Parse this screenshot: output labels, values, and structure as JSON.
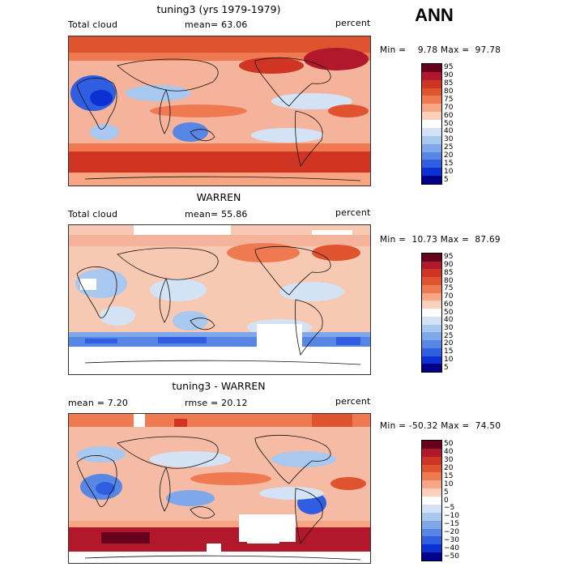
{
  "season": "ANN",
  "panels": [
    {
      "title": "tuning3 (yrs 1979-1979)",
      "left_label": "Total cloud",
      "mean_label": "mean=  63.06",
      "units": "percent",
      "minmax": "Min =    9.78 Max =  97.78",
      "colorbar": {
        "labels": [
          "95",
          "90",
          "85",
          "80",
          "75",
          "70",
          "60",
          "50",
          "40",
          "30",
          "25",
          "20",
          "15",
          "10",
          "5"
        ],
        "colors": [
          "#67001f",
          "#b2182b",
          "#cf3522",
          "#e0532f",
          "#ef7a52",
          "#f7a582",
          "#fbd0bd",
          "#ffffff",
          "#d3e3f5",
          "#a9c8f0",
          "#7fa8ea",
          "#5886e4",
          "#2f5ee0",
          "#0b30d3",
          "#00008b"
        ]
      },
      "background": "#f4b39a"
    },
    {
      "title": "WARREN",
      "left_label": "Total cloud",
      "mean_label": "mean=  55.86",
      "units": "percent",
      "minmax": "Min =  10.73 Max =  87.69",
      "colorbar": {
        "labels": [
          "95",
          "90",
          "85",
          "80",
          "75",
          "70",
          "60",
          "50",
          "40",
          "30",
          "25",
          "20",
          "15",
          "10",
          "5"
        ],
        "colors": [
          "#67001f",
          "#b2182b",
          "#cf3522",
          "#e0532f",
          "#ef7a52",
          "#f7a582",
          "#fbd0bd",
          "#ffffff",
          "#d3e3f5",
          "#a9c8f0",
          "#7fa8ea",
          "#5886e4",
          "#2f5ee0",
          "#0b30d3",
          "#00008b"
        ]
      },
      "background": "#f7c9b3"
    },
    {
      "title": "tuning3 - WARREN",
      "left_label": "mean =    7.20",
      "mean_label": "rmse =  20.12",
      "units": "percent",
      "minmax": "Min = -50.32 Max =  74.50",
      "colorbar": {
        "labels": [
          "50",
          "40",
          "30",
          "20",
          "15",
          "10",
          "5",
          "0",
          "−5",
          "−10",
          "−15",
          "−20",
          "−30",
          "−40",
          "−50"
        ],
        "colors": [
          "#67001f",
          "#b2182b",
          "#cf3522",
          "#e0532f",
          "#ef7a52",
          "#f7a582",
          "#fbd0bd",
          "#ffffff",
          "#d3e3f5",
          "#a9c8f0",
          "#7fa8ea",
          "#5886e4",
          "#2f5ee0",
          "#0b30d3",
          "#00008b"
        ]
      },
      "background": "#f5bba5"
    }
  ]
}
